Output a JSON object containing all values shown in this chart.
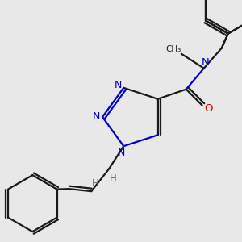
{
  "bg_color": "#e8e8e8",
  "bond_color": "#1a1a1a",
  "n_color": "#0000cc",
  "o_color": "#cc0000",
  "teal_color": "#3a8080",
  "line_width": 1.6,
  "figsize": [
    3.0,
    3.0
  ],
  "dpi": 100,
  "xlim": [
    0,
    300
  ],
  "ylim": [
    0,
    300
  ]
}
